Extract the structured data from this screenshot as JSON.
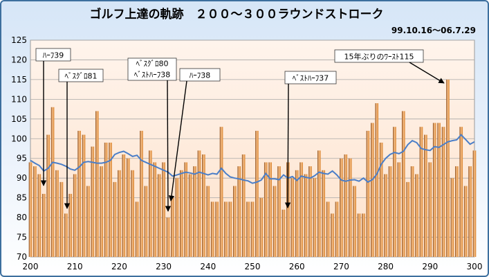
{
  "chart_data": {
    "type": "bar",
    "title": "ゴルフ上達の軌跡　２００～３００ラウンドストローク",
    "subtitle": "99.10.16～06.7.29",
    "xlim": [
      200,
      300
    ],
    "ylim": [
      70,
      125
    ],
    "x_ticks": [
      200,
      210,
      220,
      230,
      240,
      250,
      260,
      270,
      280,
      290,
      300
    ],
    "y_ticks": [
      70,
      75,
      80,
      85,
      90,
      95,
      100,
      105,
      110,
      115,
      120,
      125
    ],
    "grid": true,
    "colors": {
      "bar": "#d9822b",
      "bar_dark": "#8a4712",
      "bar_light": "#f6c08a",
      "line": "#4a7ec8",
      "plot_bg": "#fde2cc",
      "frame": "#3d6f9e"
    },
    "x": [
      200,
      201,
      202,
      203,
      204,
      205,
      206,
      207,
      208,
      209,
      210,
      211,
      212,
      213,
      214,
      215,
      216,
      217,
      218,
      219,
      220,
      221,
      222,
      223,
      224,
      225,
      226,
      227,
      228,
      229,
      230,
      231,
      232,
      233,
      234,
      235,
      236,
      237,
      238,
      239,
      240,
      241,
      242,
      243,
      244,
      245,
      246,
      247,
      248,
      249,
      250,
      251,
      252,
      253,
      254,
      255,
      256,
      257,
      258,
      259,
      260,
      261,
      262,
      263,
      264,
      265,
      266,
      267,
      268,
      269,
      270,
      271,
      272,
      273,
      274,
      275,
      276,
      277,
      278,
      279,
      280,
      281,
      282,
      283,
      284,
      285,
      286,
      287,
      288,
      289,
      290,
      291,
      292,
      293,
      294,
      295,
      296,
      297,
      298,
      299,
      300
    ],
    "series": [
      {
        "values": [
          94,
          93,
          91,
          86,
          101,
          108,
          92,
          89,
          81,
          86,
          91,
          102,
          101,
          88,
          98,
          107,
          93,
          99,
          99,
          89,
          92,
          96,
          95,
          92,
          84,
          102,
          88,
          97,
          94,
          91,
          94,
          80,
          85,
          90,
          92,
          94,
          91,
          93,
          97,
          96,
          88,
          84,
          84,
          103,
          84,
          84,
          88,
          93,
          96,
          84,
          84,
          102,
          85,
          94,
          94,
          88,
          93,
          82,
          94,
          90,
          92,
          94,
          91,
          93,
          90,
          97,
          92,
          84,
          81,
          84,
          95,
          96,
          95,
          88,
          81,
          81,
          102,
          104,
          109,
          99,
          91,
          93,
          103,
          94,
          107,
          89,
          93,
          91,
          103,
          101,
          94,
          104,
          104,
          103,
          115,
          90,
          93,
          103,
          88,
          93,
          97
        ]
      },
      {
        "values": [
          94.5,
          93.8,
          93.2,
          91.8,
          92.5,
          94,
          93.8,
          93.5,
          93.0,
          92.3,
          92,
          92.8,
          94,
          94.2,
          94,
          93.8,
          93.8,
          94,
          94.5,
          96,
          96.5,
          96.8,
          96.2,
          95.5,
          95.8,
          94.5,
          94,
          93.5,
          93,
          92.5,
          92,
          91.5,
          90.5,
          90.8,
          91.2,
          91.5,
          91.3,
          91,
          91.5,
          91.2,
          90.8,
          91.2,
          91.0,
          92.5,
          91.2,
          90.3,
          90.0,
          89.8,
          89.5,
          89.3,
          88.7,
          89.0,
          89.5,
          91.2,
          89.8,
          89.8,
          89.6,
          90.8,
          90.0,
          90.4,
          89.4,
          90.5,
          90.2,
          90.0,
          90.6,
          91.5,
          91.2,
          91.0,
          91.8,
          90.8,
          89.5,
          89.2,
          89.5,
          89.6,
          89.2,
          90.0,
          89.0,
          89.6,
          91.0,
          93.5,
          95.0,
          96.0,
          96.5,
          96.2,
          96.8,
          98.5,
          99.5,
          99.0,
          97.5,
          97.2,
          97.0,
          98.0,
          97.8,
          98.5,
          99.2,
          99.5,
          99.7,
          101.0,
          99.8,
          98.6,
          99.2
        ]
      }
    ],
    "annotations": [
      {
        "text": "ﾊｰﾌ39",
        "x": 203,
        "y": 86
      },
      {
        "text": "ﾍﾞｽｸﾞﾛ81",
        "x": 208,
        "y": 81
      },
      {
        "text": "ﾍﾞｽｸﾞﾛ80",
        "x": 231,
        "y": 80
      },
      {
        "text": "ﾍﾞｽﾄﾊｰﾌ38",
        "x": 231,
        "y": 80
      },
      {
        "text": "ﾊｰﾌ38",
        "x": 232,
        "y": 85
      },
      {
        "text": "ﾍﾞｽﾄﾊｰﾌ37",
        "x": 258,
        "y": 82
      },
      {
        "text": "15年ぶりのﾜｰｽﾄ115",
        "x": 294,
        "y": 115
      }
    ]
  }
}
